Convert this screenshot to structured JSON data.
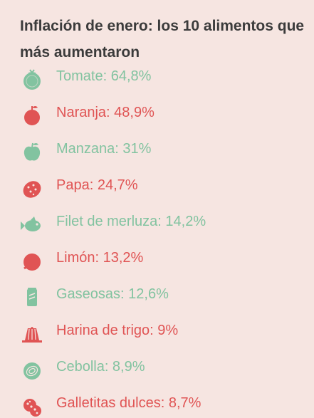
{
  "title": "Inflación de enero: los 10 alimentos que más aumentaron",
  "colors": {
    "background": "#f6e5e1",
    "title": "#3b3b3b",
    "green": "#82c3a0",
    "red": "#e05454"
  },
  "items": [
    {
      "label": "Tomate: 64,8%",
      "icon": "tomato-icon",
      "color": "green"
    },
    {
      "label": "Naranja: 48,9%",
      "icon": "orange-icon",
      "color": "red"
    },
    {
      "label": "Manzana: 31%",
      "icon": "apple-icon",
      "color": "green"
    },
    {
      "label": "Papa: 24,7%",
      "icon": "potato-icon",
      "color": "red"
    },
    {
      "label": "Filet de merluza: 14,2%",
      "icon": "fish-icon",
      "color": "green"
    },
    {
      "label": "Limón: 13,2%",
      "icon": "lemon-icon",
      "color": "red"
    },
    {
      "label": "Gaseosas: 12,6%",
      "icon": "soda-can-icon",
      "color": "green"
    },
    {
      "label": "Harina de trigo: 9%",
      "icon": "flan-icon",
      "color": "red"
    },
    {
      "label": "Cebolla: 8,9%",
      "icon": "onion-icon",
      "color": "green"
    },
    {
      "label": "Galletitas dulces: 8,7%",
      "icon": "cookie-icon",
      "color": "red"
    }
  ]
}
